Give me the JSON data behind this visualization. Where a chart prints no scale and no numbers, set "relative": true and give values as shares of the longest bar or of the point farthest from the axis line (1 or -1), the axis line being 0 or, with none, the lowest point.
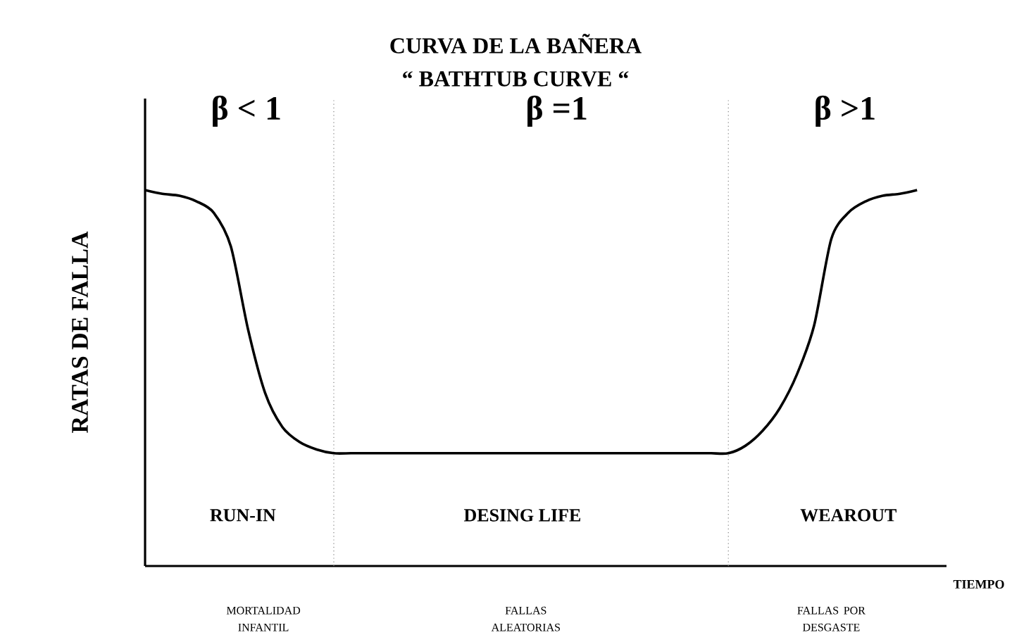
{
  "chart_data": {
    "type": "line",
    "title": "CURVA DE LA BAÑERA",
    "subtitle": "“ BATHTUB CURVE “",
    "ylabel": "RATAS DE FALLA",
    "xlabel": "TIEMPO",
    "relative": true,
    "categories": [
      null,
      null,
      null,
      null,
      null,
      null,
      null,
      null,
      null,
      null,
      null,
      null,
      null,
      null,
      null,
      null,
      null,
      null,
      null,
      null,
      null,
      null,
      null,
      null,
      null,
      null,
      null,
      null,
      null,
      null,
      null,
      null,
      null,
      null,
      null,
      null,
      null,
      null,
      null,
      null,
      null,
      null,
      null,
      null,
      null,
      null
    ],
    "series": [
      {
        "color": "#000000",
        "values": [
          1.0,
          0.99,
          0.985,
          0.97,
          0.94,
          0.85,
          0.63,
          0.46,
          0.37,
          0.33,
          0.31,
          0.3,
          0.3,
          0.3,
          0.3,
          0.3,
          0.3,
          0.3,
          0.3,
          0.3,
          0.3,
          0.3,
          0.3,
          0.3,
          0.3,
          0.3,
          0.3,
          0.3,
          0.3,
          0.3,
          0.3,
          0.3,
          0.3,
          0.3,
          0.3,
          0.32,
          0.36,
          0.42,
          0.51,
          0.64,
          0.87,
          0.94,
          0.97,
          0.985,
          0.99,
          1.0
        ]
      }
    ],
    "annotations": [
      "β < 1",
      "β =1",
      "β >1",
      "RUN-IN",
      "DESING LIFE",
      "WEAROUT",
      "MORTALIDAD INFANTIL",
      "FALLAS ALEATORIAS",
      "FALLAS POR DESGASTE"
    ],
    "line_style": "solid",
    "marker": "none"
  }
}
